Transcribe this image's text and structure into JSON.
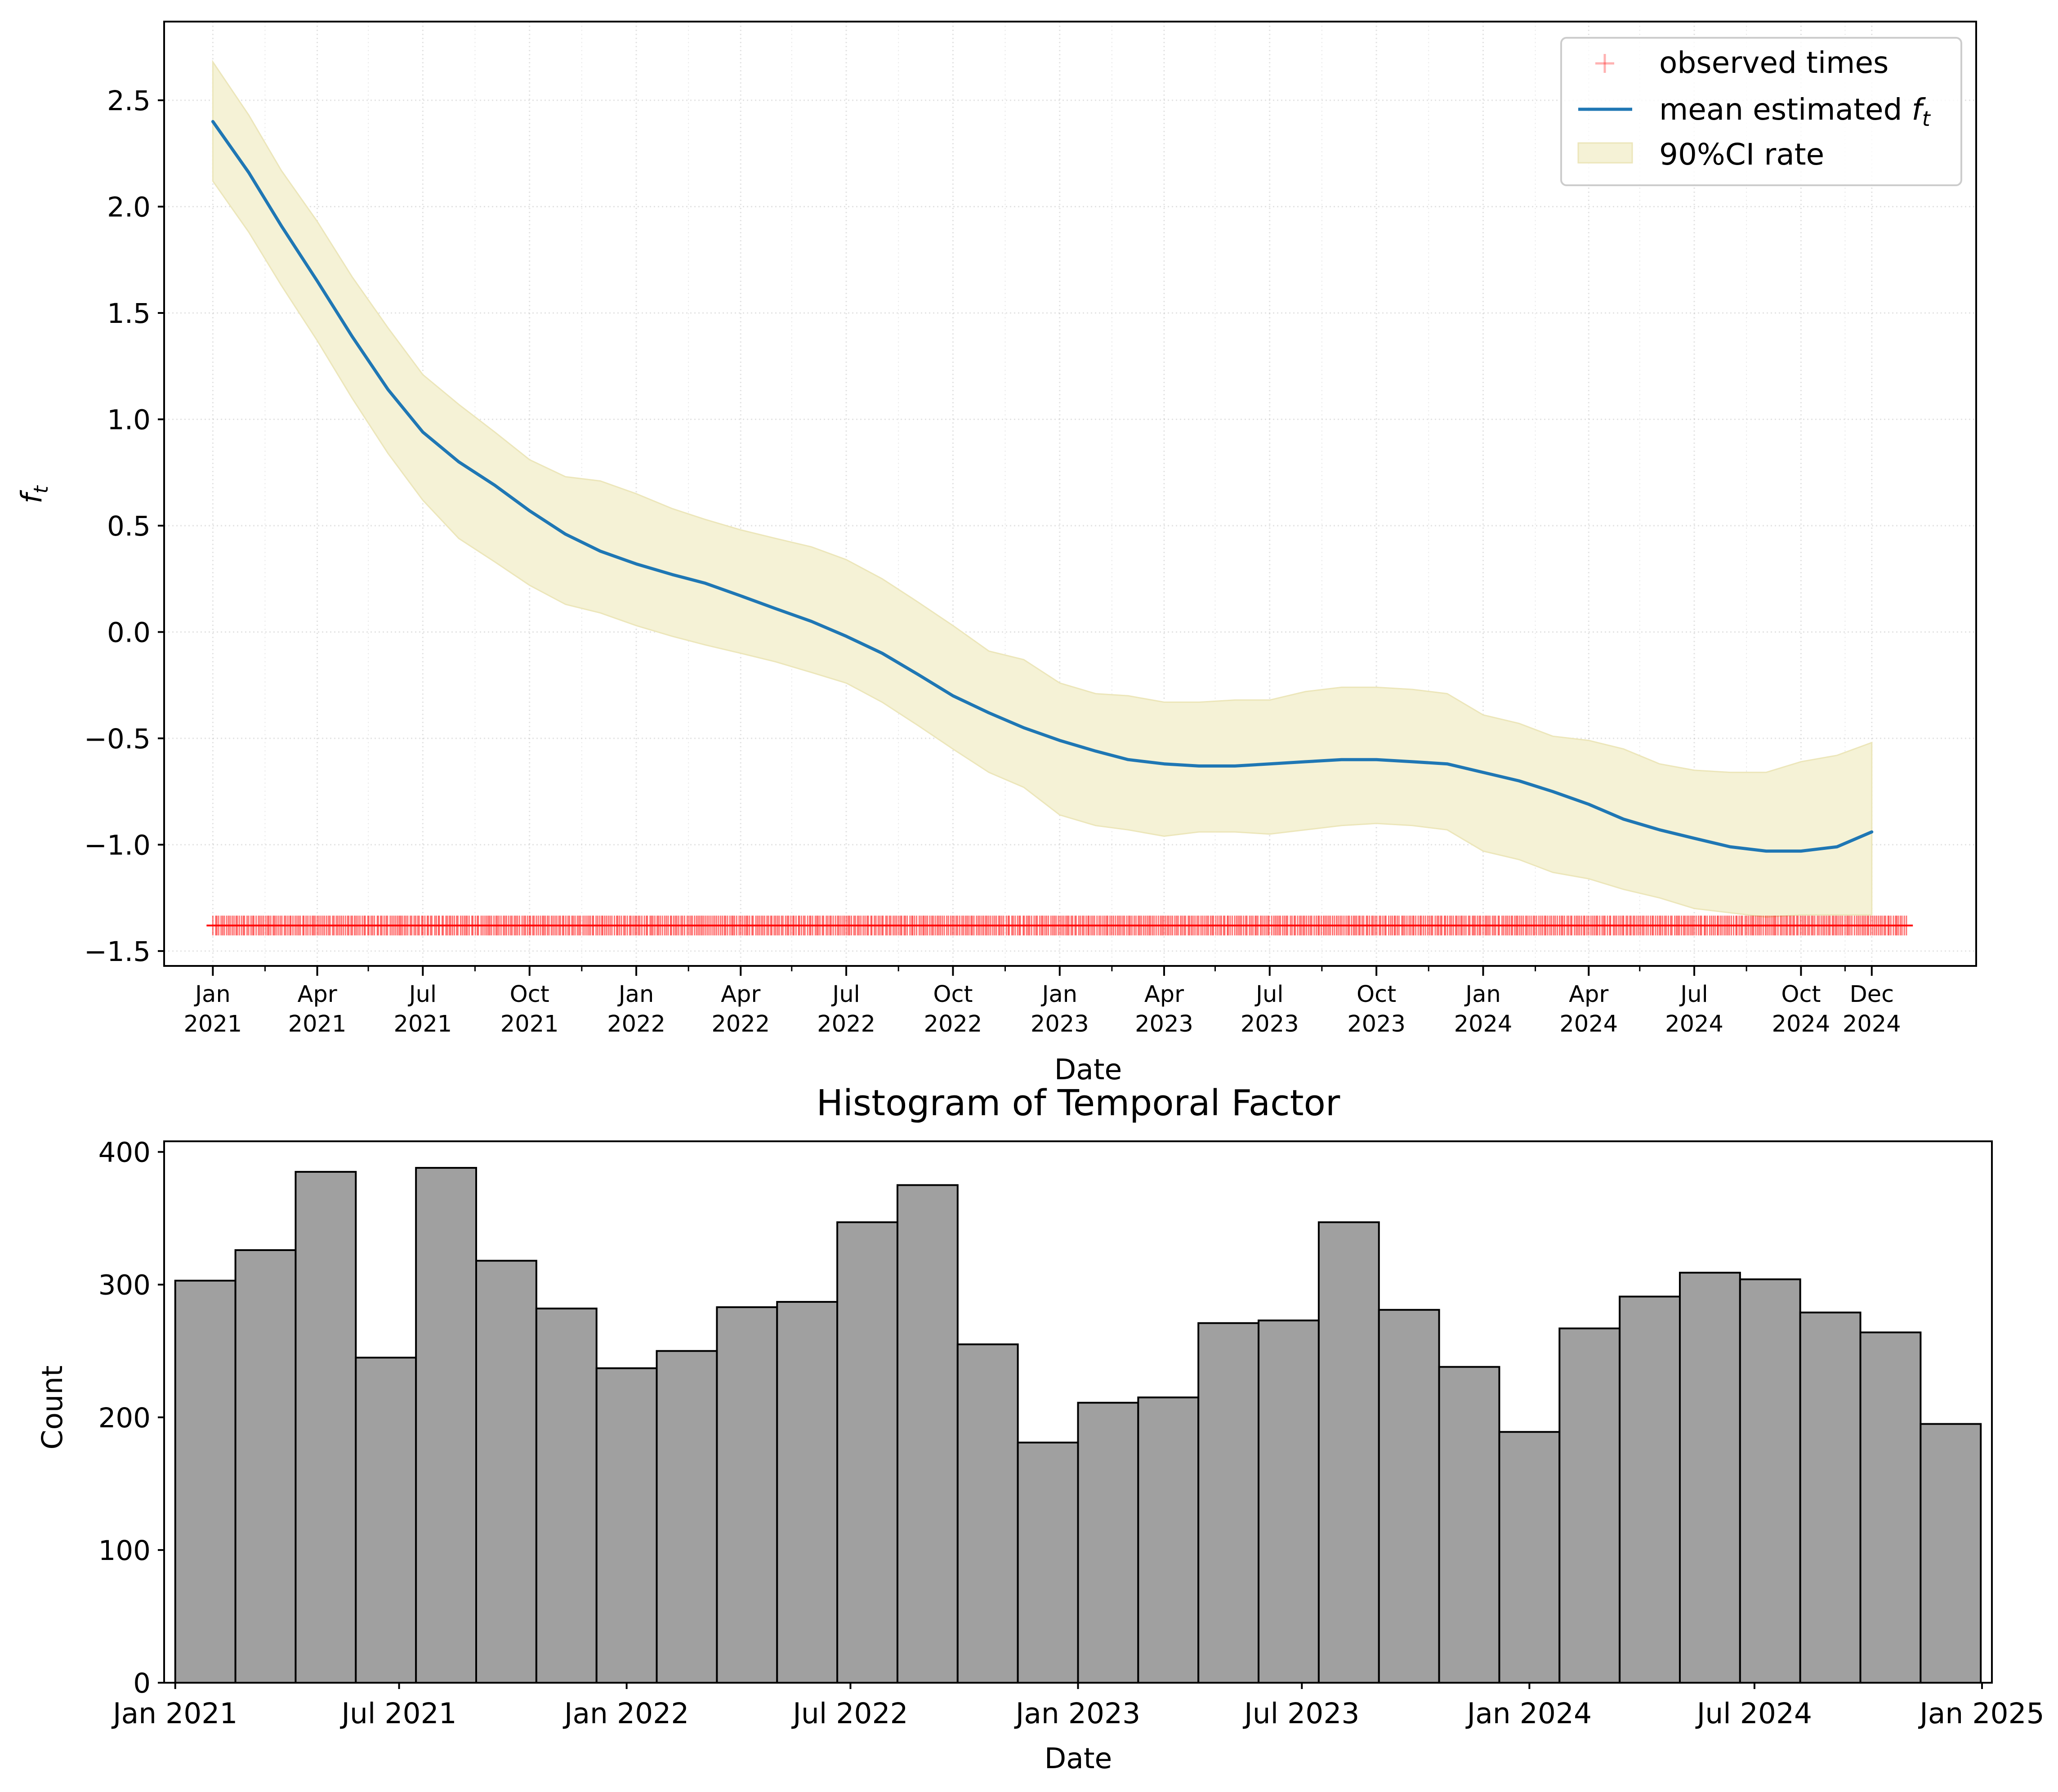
{
  "chart_data": [
    {
      "type": "line",
      "ylabel": "f_t",
      "xlabel": "Date",
      "ylim": [
        -1.57,
        2.87
      ],
      "xlim": [
        "2020-11-20",
        "2025-03-01"
      ],
      "grid": true,
      "legend_position": "top-right",
      "legend": [
        {
          "label": "observed times",
          "kind": "marker",
          "color": "#ff0000"
        },
        {
          "label": "mean estimated f_t",
          "kind": "line",
          "color": "#1f77b4"
        },
        {
          "label": "90%CI rate",
          "kind": "band",
          "color": "#f5f2d6"
        }
      ],
      "x_ticks": [
        {
          "date": "2021-01-01",
          "label": [
            "Jan",
            "2021"
          ]
        },
        {
          "date": "2021-04-01",
          "label": [
            "Apr",
            "2021"
          ]
        },
        {
          "date": "2021-07-01",
          "label": [
            "Jul",
            "2021"
          ]
        },
        {
          "date": "2021-10-01",
          "label": [
            "Oct",
            "2021"
          ]
        },
        {
          "date": "2022-01-01",
          "label": [
            "Jan",
            "2022"
          ]
        },
        {
          "date": "2022-04-01",
          "label": [
            "Apr",
            "2022"
          ]
        },
        {
          "date": "2022-07-01",
          "label": [
            "Jul",
            "2022"
          ]
        },
        {
          "date": "2022-10-01",
          "label": [
            "Oct",
            "2022"
          ]
        },
        {
          "date": "2023-01-01",
          "label": [
            "Jan",
            "2023"
          ]
        },
        {
          "date": "2023-04-01",
          "label": [
            "Apr",
            "2023"
          ]
        },
        {
          "date": "2023-07-01",
          "label": [
            "Jul",
            "2023"
          ]
        },
        {
          "date": "2023-10-01",
          "label": [
            "Oct",
            "2023"
          ]
        },
        {
          "date": "2024-01-01",
          "label": [
            "Jan",
            "2024"
          ]
        },
        {
          "date": "2024-04-01",
          "label": [
            "Apr",
            "2024"
          ]
        },
        {
          "date": "2024-07-01",
          "label": [
            "Jul",
            "2024"
          ]
        },
        {
          "date": "2024-10-01",
          "label": [
            "Oct",
            "2024"
          ]
        },
        {
          "date": "2024-12-01",
          "label": [
            "Dec",
            "2024"
          ]
        }
      ],
      "x_minor_ticks": [
        "2021-02-15",
        "2021-05-15",
        "2021-08-15",
        "2021-11-15",
        "2022-02-15",
        "2022-05-15",
        "2022-08-15",
        "2022-11-15",
        "2023-02-15",
        "2023-05-15",
        "2023-08-15",
        "2023-11-15",
        "2024-02-15",
        "2024-05-15",
        "2024-08-15",
        "2024-11-08"
      ],
      "y_ticks": [
        -1.5,
        -1.0,
        -0.5,
        0.0,
        0.5,
        1.0,
        1.5,
        2.0,
        2.5
      ],
      "y_tick_labels": [
        "−1.5",
        "−1.0",
        "−0.5",
        "0.0",
        "0.5",
        "1.0",
        "1.5",
        "2.0",
        "2.5"
      ],
      "series": [
        {
          "name": "mean estimated f_t",
          "x": [
            "2021-01-01",
            "2021-02-01",
            "2021-03-01",
            "2021-04-01",
            "2021-05-01",
            "2021-06-01",
            "2021-07-01",
            "2021-08-01",
            "2021-09-01",
            "2021-10-01",
            "2021-11-01",
            "2021-12-01",
            "2022-01-01",
            "2022-02-01",
            "2022-03-01",
            "2022-04-01",
            "2022-05-01",
            "2022-06-01",
            "2022-07-01",
            "2022-08-01",
            "2022-09-01",
            "2022-10-01",
            "2022-11-01",
            "2022-12-01",
            "2023-01-01",
            "2023-02-01",
            "2023-03-01",
            "2023-04-01",
            "2023-05-01",
            "2023-06-01",
            "2023-07-01",
            "2023-08-01",
            "2023-09-01",
            "2023-10-01",
            "2023-11-01",
            "2023-12-01",
            "2024-01-01",
            "2024-02-01",
            "2024-03-01",
            "2024-04-01",
            "2024-05-01",
            "2024-06-01",
            "2024-07-01",
            "2024-08-01",
            "2024-09-01",
            "2024-10-01",
            "2024-11-01",
            "2024-12-01"
          ],
          "y": [
            2.4,
            2.16,
            1.91,
            1.65,
            1.39,
            1.14,
            0.94,
            0.8,
            0.69,
            0.57,
            0.46,
            0.38,
            0.32,
            0.27,
            0.23,
            0.17,
            0.11,
            0.05,
            -0.02,
            -0.1,
            -0.2,
            -0.3,
            -0.38,
            -0.45,
            -0.51,
            -0.56,
            -0.6,
            -0.62,
            -0.63,
            -0.63,
            -0.62,
            -0.61,
            -0.6,
            -0.6,
            -0.61,
            -0.62,
            -0.66,
            -0.7,
            -0.75,
            -0.81,
            -0.88,
            -0.93,
            -0.97,
            -1.01,
            -1.03,
            -1.03,
            -1.01,
            -0.94
          ]
        }
      ],
      "ci_band": {
        "name": "90%CI rate",
        "upper": [
          2.68,
          2.43,
          2.17,
          1.93,
          1.67,
          1.43,
          1.21,
          1.07,
          0.94,
          0.81,
          0.73,
          0.71,
          0.65,
          0.58,
          0.53,
          0.48,
          0.44,
          0.4,
          0.34,
          0.25,
          0.14,
          0.03,
          -0.09,
          -0.13,
          -0.24,
          -0.29,
          -0.3,
          -0.33,
          -0.33,
          -0.32,
          -0.32,
          -0.28,
          -0.26,
          -0.26,
          -0.27,
          -0.29,
          -0.39,
          -0.43,
          -0.49,
          -0.51,
          -0.55,
          -0.62,
          -0.65,
          -0.66,
          -0.66,
          -0.61,
          -0.58,
          -0.52
        ],
        "lower": [
          2.12,
          1.88,
          1.63,
          1.37,
          1.1,
          0.84,
          0.62,
          0.44,
          0.33,
          0.22,
          0.13,
          0.09,
          0.03,
          -0.02,
          -0.06,
          -0.1,
          -0.14,
          -0.19,
          -0.24,
          -0.33,
          -0.44,
          -0.55,
          -0.66,
          -0.73,
          -0.86,
          -0.91,
          -0.93,
          -0.96,
          -0.94,
          -0.94,
          -0.95,
          -0.93,
          -0.91,
          -0.9,
          -0.91,
          -0.93,
          -1.03,
          -1.07,
          -1.13,
          -1.16,
          -1.21,
          -1.25,
          -1.3,
          -1.32,
          -1.34,
          -1.33,
          -1.33,
          -1.33
        ]
      },
      "observed_times": {
        "name": "observed times",
        "y": -1.38,
        "x_start": "2021-01-01",
        "x_end": "2024-12-31"
      }
    },
    {
      "type": "bar",
      "title": "Histogram of Temporal Factor",
      "xlabel": "Date",
      "ylabel": "Count",
      "ylim": [
        0,
        408
      ],
      "xlim": [
        "2020-12-23",
        "2025-01-09"
      ],
      "y_ticks": [
        0,
        100,
        200,
        300,
        400
      ],
      "x_ticks": [
        {
          "date": "2021-01-01",
          "label": "Jan 2021"
        },
        {
          "date": "2021-07-01",
          "label": "Jul 2021"
        },
        {
          "date": "2022-01-01",
          "label": "Jan 2022"
        },
        {
          "date": "2022-07-01",
          "label": "Jul 2022"
        },
        {
          "date": "2023-01-01",
          "label": "Jan 2023"
        },
        {
          "date": "2023-07-01",
          "label": "Jul 2023"
        },
        {
          "date": "2024-01-01",
          "label": "Jan 2024"
        },
        {
          "date": "2024-07-01",
          "label": "Jul 2024"
        },
        {
          "date": "2025-01-01",
          "label": "Jan 2025"
        }
      ],
      "bins_start": "2021-01-01",
      "bins_end": "2024-12-31",
      "values": [
        303,
        326,
        385,
        245,
        388,
        318,
        282,
        237,
        250,
        283,
        287,
        347,
        375,
        255,
        181,
        211,
        215,
        271,
        273,
        347,
        281,
        238,
        189,
        267,
        291,
        309,
        304,
        279,
        264,
        195
      ],
      "bar_color": "#a0a0a0",
      "edge_color": "#000000"
    }
  ]
}
